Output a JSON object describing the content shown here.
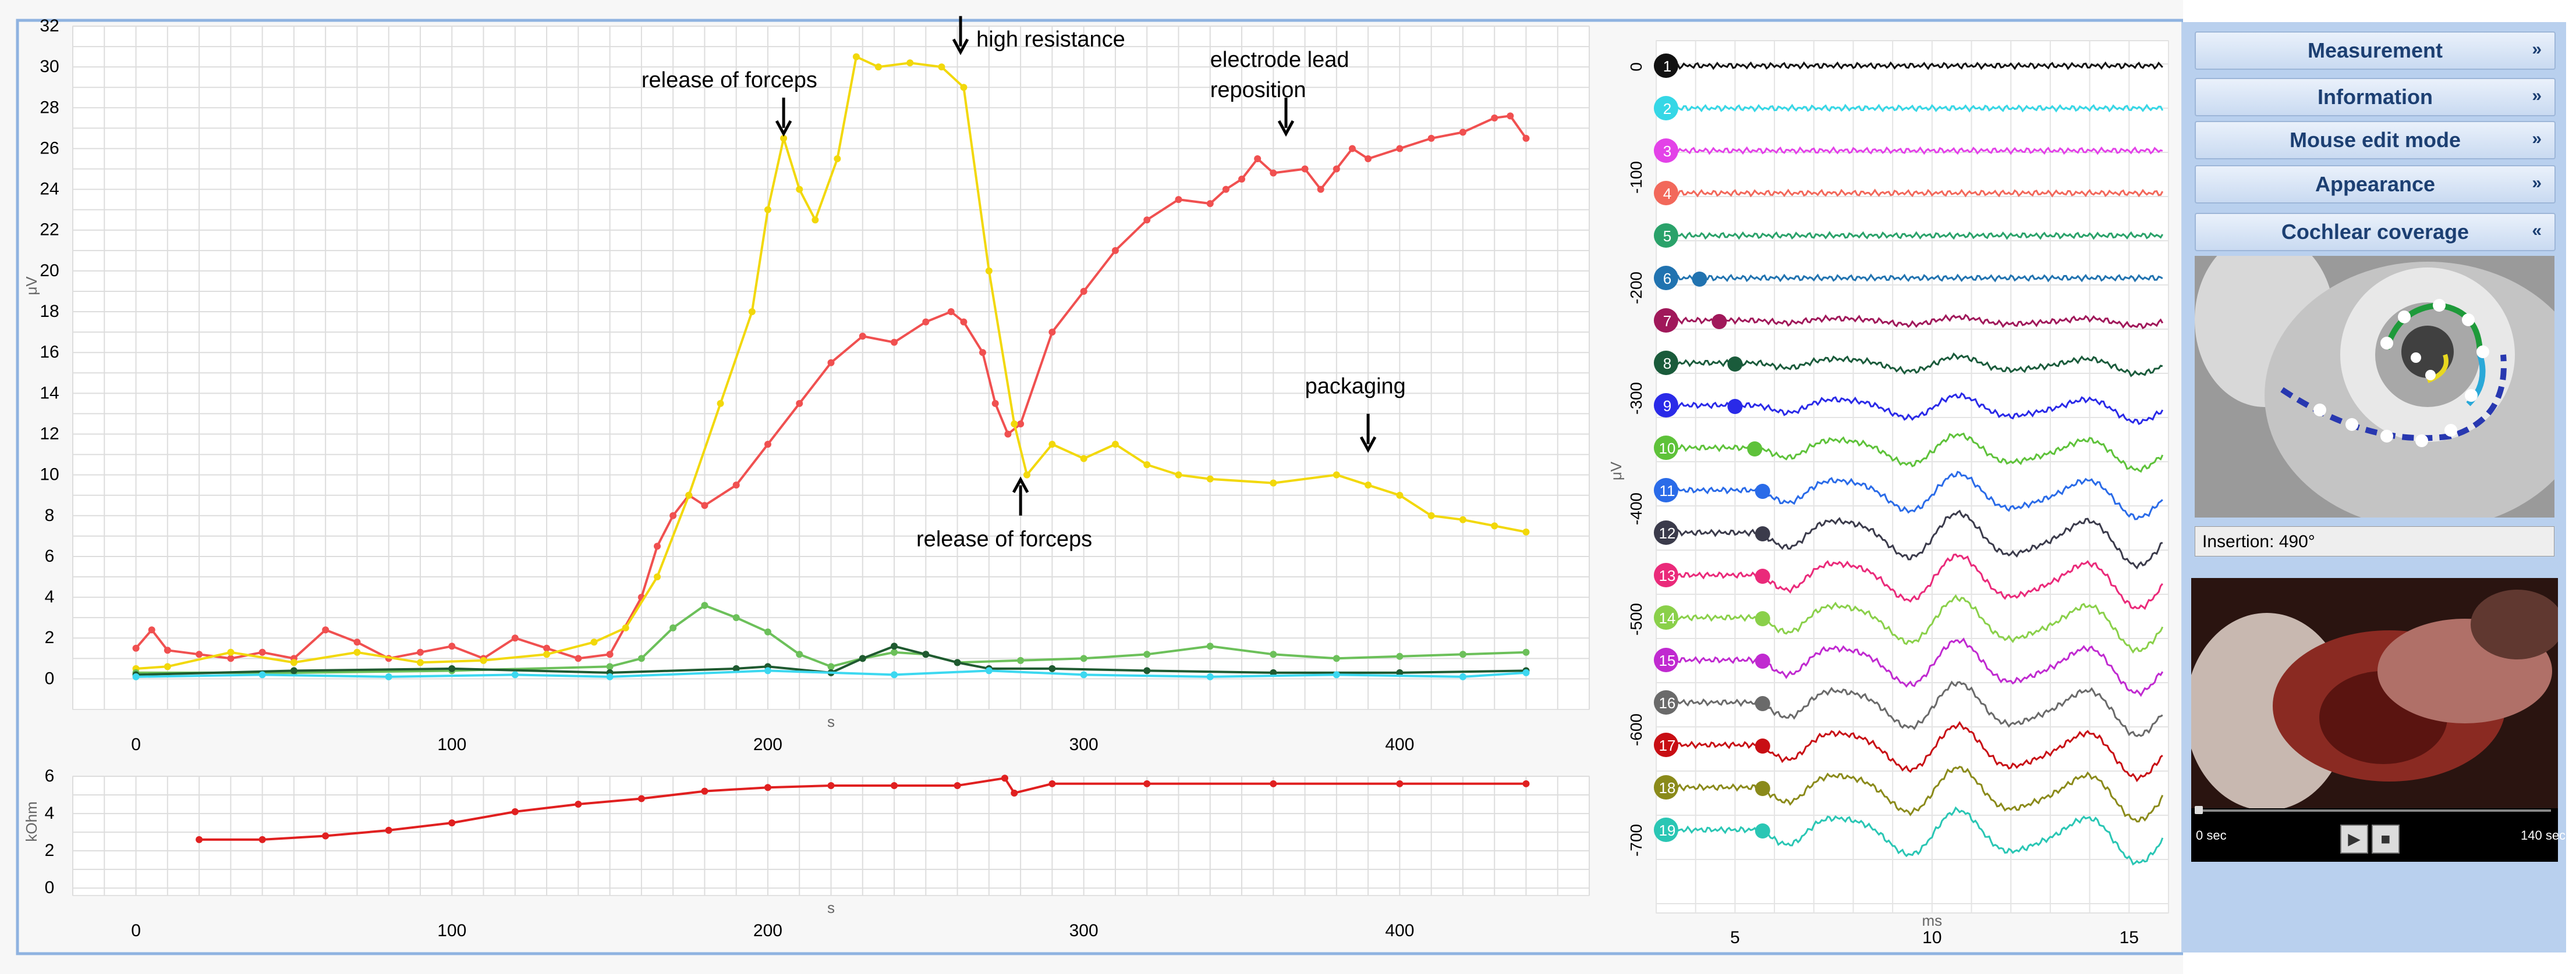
{
  "panels": [
    {
      "label": "Measurement",
      "chevron": "»"
    },
    {
      "label": "Information",
      "chevron": "»"
    },
    {
      "label": "Mouse edit mode",
      "chevron": "»"
    },
    {
      "label": "Appearance",
      "chevron": "»"
    },
    {
      "label": "Cochlear coverage",
      "chevron": "«"
    }
  ],
  "insertion_label": "Insertion: 490°",
  "video": {
    "start": "0 sec",
    "end": "140 sec",
    "play": "▶",
    "stop": "■"
  },
  "chart_data": [
    {
      "type": "line",
      "xlabel": "s",
      "ylabel": "μV",
      "xlim": [
        -20,
        460
      ],
      "ylim": [
        -1.5,
        32
      ],
      "xticks": [
        0,
        100,
        200,
        300,
        400
      ],
      "yticks": [
        0,
        2,
        4,
        6,
        8,
        10,
        12,
        14,
        16,
        18,
        20,
        22,
        24,
        26,
        28,
        30,
        32
      ],
      "grid": true,
      "series": [
        {
          "color": "#f05050",
          "values": [
            [
              0,
              1.5
            ],
            [
              5,
              2.4
            ],
            [
              10,
              1.4
            ],
            [
              20,
              1.2
            ],
            [
              30,
              1.0
            ],
            [
              40,
              1.3
            ],
            [
              50,
              1.0
            ],
            [
              60,
              2.4
            ],
            [
              70,
              1.8
            ],
            [
              80,
              1.0
            ],
            [
              90,
              1.3
            ],
            [
              100,
              1.6
            ],
            [
              110,
              1.0
            ],
            [
              120,
              2.0
            ],
            [
              130,
              1.5
            ],
            [
              140,
              1.0
            ],
            [
              150,
              1.2
            ],
            [
              160,
              4.0
            ],
            [
              165,
              6.5
            ],
            [
              170,
              8.0
            ],
            [
              175,
              9.0
            ],
            [
              180,
              8.5
            ],
            [
              190,
              9.5
            ],
            [
              200,
              11.5
            ],
            [
              210,
              13.5
            ],
            [
              220,
              15.5
            ],
            [
              230,
              16.8
            ],
            [
              240,
              16.5
            ],
            [
              250,
              17.5
            ],
            [
              258,
              18.0
            ],
            [
              262,
              17.5
            ],
            [
              268,
              16.0
            ],
            [
              272,
              13.5
            ],
            [
              276,
              12.0
            ],
            [
              280,
              12.5
            ],
            [
              290,
              17.0
            ],
            [
              300,
              19.0
            ],
            [
              310,
              21.0
            ],
            [
              320,
              22.5
            ],
            [
              330,
              23.5
            ],
            [
              340,
              23.3
            ],
            [
              345,
              24.0
            ],
            [
              350,
              24.5
            ],
            [
              355,
              25.5
            ],
            [
              360,
              24.8
            ],
            [
              370,
              25.0
            ],
            [
              375,
              24.0
            ],
            [
              380,
              25.0
            ],
            [
              385,
              26.0
            ],
            [
              390,
              25.5
            ],
            [
              400,
              26.0
            ],
            [
              410,
              26.5
            ],
            [
              420,
              26.8
            ],
            [
              430,
              27.5
            ],
            [
              435,
              27.6
            ],
            [
              440,
              26.5
            ]
          ]
        },
        {
          "color": "#f2d80a",
          "values": [
            [
              0,
              0.5
            ],
            [
              10,
              0.6
            ],
            [
              30,
              1.3
            ],
            [
              50,
              0.8
            ],
            [
              70,
              1.3
            ],
            [
              90,
              0.8
            ],
            [
              110,
              0.9
            ],
            [
              130,
              1.2
            ],
            [
              145,
              1.8
            ],
            [
              155,
              2.5
            ],
            [
              165,
              5.0
            ],
            [
              175,
              9.0
            ],
            [
              185,
              13.5
            ],
            [
              195,
              18.0
            ],
            [
              200,
              23.0
            ],
            [
              205,
              26.5
            ],
            [
              210,
              24.0
            ],
            [
              215,
              22.5
            ],
            [
              222,
              25.5
            ],
            [
              228,
              30.5
            ],
            [
              235,
              30.0
            ],
            [
              245,
              30.2
            ],
            [
              255,
              30.0
            ],
            [
              262,
              29.0
            ],
            [
              270,
              20.0
            ],
            [
              278,
              12.5
            ],
            [
              282,
              10.0
            ],
            [
              290,
              11.5
            ],
            [
              300,
              10.8
            ],
            [
              310,
              11.5
            ],
            [
              320,
              10.5
            ],
            [
              330,
              10.0
            ],
            [
              340,
              9.8
            ],
            [
              360,
              9.6
            ],
            [
              380,
              10.0
            ],
            [
              390,
              9.5
            ],
            [
              400,
              9.0
            ],
            [
              410,
              8.0
            ],
            [
              420,
              7.8
            ],
            [
              430,
              7.5
            ],
            [
              440,
              7.2
            ]
          ]
        },
        {
          "color": "#6cc05a",
          "values": [
            [
              0,
              0.3
            ],
            [
              50,
              0.3
            ],
            [
              100,
              0.4
            ],
            [
              150,
              0.6
            ],
            [
              160,
              1.0
            ],
            [
              170,
              2.5
            ],
            [
              180,
              3.6
            ],
            [
              190,
              3.0
            ],
            [
              200,
              2.3
            ],
            [
              210,
              1.2
            ],
            [
              220,
              0.6
            ],
            [
              230,
              1.0
            ],
            [
              240,
              1.3
            ],
            [
              250,
              1.2
            ],
            [
              260,
              0.8
            ],
            [
              280,
              0.9
            ],
            [
              300,
              1.0
            ],
            [
              320,
              1.2
            ],
            [
              340,
              1.6
            ],
            [
              360,
              1.2
            ],
            [
              380,
              1.0
            ],
            [
              400,
              1.1
            ],
            [
              420,
              1.2
            ],
            [
              440,
              1.3
            ]
          ]
        },
        {
          "color": "#1f5a30",
          "values": [
            [
              0,
              0.2
            ],
            [
              50,
              0.4
            ],
            [
              100,
              0.5
            ],
            [
              150,
              0.3
            ],
            [
              190,
              0.5
            ],
            [
              200,
              0.6
            ],
            [
              220,
              0.3
            ],
            [
              230,
              1.0
            ],
            [
              240,
              1.6
            ],
            [
              250,
              1.2
            ],
            [
              260,
              0.8
            ],
            [
              270,
              0.5
            ],
            [
              290,
              0.5
            ],
            [
              320,
              0.4
            ],
            [
              360,
              0.3
            ],
            [
              400,
              0.3
            ],
            [
              440,
              0.4
            ]
          ]
        },
        {
          "color": "#3cd8f0",
          "values": [
            [
              0,
              0.1
            ],
            [
              40,
              0.2
            ],
            [
              80,
              0.1
            ],
            [
              120,
              0.2
            ],
            [
              150,
              0.1
            ],
            [
              200,
              0.4
            ],
            [
              240,
              0.2
            ],
            [
              270,
              0.4
            ],
            [
              300,
              0.2
            ],
            [
              340,
              0.1
            ],
            [
              380,
              0.2
            ],
            [
              420,
              0.1
            ],
            [
              440,
              0.3
            ]
          ]
        }
      ],
      "annotations": [
        {
          "text": "release of forceps",
          "x": 205,
          "y": 26.5,
          "dir": "down",
          "tx": 160,
          "ty": 29.0
        },
        {
          "text": "high resistance",
          "x": 261,
          "y": 30.5,
          "dir": "down",
          "tx": 266,
          "ty": 31.0
        },
        {
          "text": "electrode lead reposition",
          "x": 364,
          "y": 26.5,
          "dir": "down",
          "tx": 340,
          "ty": 30.0
        },
        {
          "text": "packaging",
          "x": 390,
          "y": 11.0,
          "dir": "down",
          "tx": 370,
          "ty": 14.0
        },
        {
          "text": "release of forceps",
          "x": 280,
          "y": 10.0,
          "dir": "up",
          "tx": 247,
          "ty": 6.5
        }
      ]
    },
    {
      "type": "line",
      "xlabel": "s",
      "ylabel": "kOhm",
      "xlim": [
        -20,
        460
      ],
      "ylim": [
        -0.4,
        6
      ],
      "xticks": [
        0,
        100,
        200,
        300,
        400
      ],
      "yticks": [
        0,
        2,
        4,
        6
      ],
      "grid": true,
      "series": [
        {
          "color": "#e02020",
          "values": [
            [
              20,
              2.6
            ],
            [
              40,
              2.6
            ],
            [
              60,
              2.8
            ],
            [
              80,
              3.1
            ],
            [
              100,
              3.5
            ],
            [
              120,
              4.1
            ],
            [
              140,
              4.5
            ],
            [
              160,
              4.8
            ],
            [
              180,
              5.2
            ],
            [
              200,
              5.4
            ],
            [
              220,
              5.5
            ],
            [
              240,
              5.5
            ],
            [
              260,
              5.5
            ],
            [
              275,
              5.9
            ],
            [
              278,
              5.1
            ],
            [
              290,
              5.6
            ],
            [
              320,
              5.6
            ],
            [
              360,
              5.6
            ],
            [
              400,
              5.6
            ],
            [
              440,
              5.6
            ]
          ]
        }
      ]
    },
    {
      "type": "line",
      "xlabel": "ms",
      "ylabel": "μV",
      "xlim": [
        3,
        16
      ],
      "xticks": [
        5,
        10,
        15
      ],
      "yticks": [
        0,
        -100,
        -200,
        -300,
        -400,
        -500,
        -600,
        -700
      ],
      "channel_labels": [
        "1",
        "2",
        "3",
        "4",
        "5",
        "6",
        "7",
        "8",
        "9",
        "10",
        "11",
        "12",
        "13",
        "14",
        "15",
        "16",
        "17",
        "18",
        "19"
      ],
      "channel_colors": [
        "#111111",
        "#35d7e6",
        "#e342e8",
        "#f2685b",
        "#2aa26a",
        "#2173b0",
        "#a0185a",
        "#1a5b3b",
        "#2a2ae8",
        "#5ec23a",
        "#2a6be8",
        "#3b3b4b",
        "#ea2a7a",
        "#8ad04a",
        "#c02ad0",
        "#6a6a6a",
        "#c80e14",
        "#8a8a1a",
        "#2ac6b4"
      ],
      "marker_ms": [
        null,
        null,
        null,
        null,
        null,
        4.1,
        4.6,
        5.0,
        5.0,
        5.5,
        5.7,
        5.7,
        5.7,
        5.7,
        5.7,
        5.7,
        5.7,
        5.7,
        5.7
      ]
    }
  ]
}
